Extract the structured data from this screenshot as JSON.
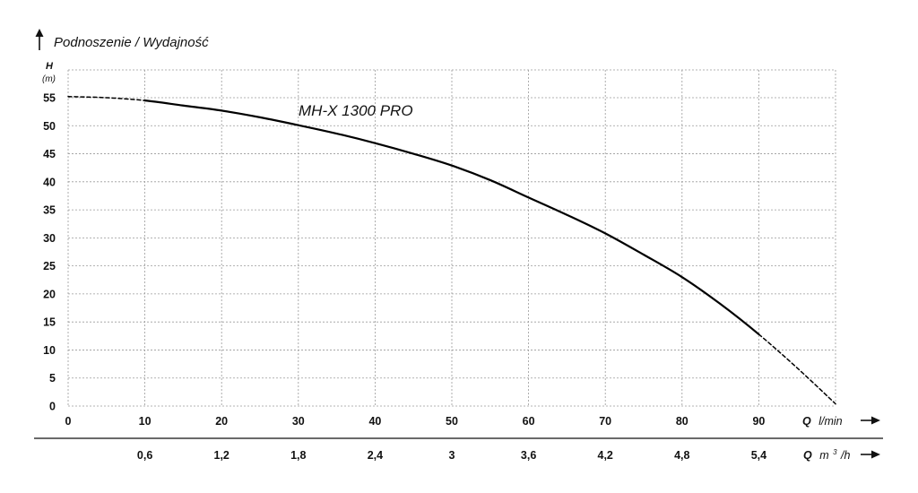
{
  "chart_data": {
    "type": "line",
    "title": "Podnoszenie / Wydajność",
    "y_axis": {
      "symbol": "H",
      "unit": "(m)",
      "ylim": [
        0,
        55
      ],
      "ticks": [
        "0",
        "5",
        "10",
        "15",
        "20",
        "25",
        "30",
        "35",
        "40",
        "45",
        "50",
        "55"
      ],
      "tick_values": [
        0,
        5,
        10,
        15,
        20,
        25,
        30,
        35,
        40,
        45,
        50,
        55
      ]
    },
    "x_axis": {
      "symbol": "Q",
      "unit": "l/min",
      "xlim": [
        0,
        100
      ],
      "ticks": [
        "0",
        "10",
        "20",
        "30",
        "40",
        "50",
        "60",
        "70",
        "80",
        "90"
      ],
      "tick_values": [
        0,
        10,
        20,
        30,
        40,
        50,
        60,
        70,
        80,
        90
      ]
    },
    "x_axis_secondary": {
      "symbol": "Q",
      "unit_base": "m",
      "unit_sup": "3",
      "unit_tail": "/h",
      "ticks": [
        "0,6",
        "1,2",
        "1,8",
        "2,4",
        "3",
        "3,6",
        "4,2",
        "4,8",
        "5,4"
      ],
      "tick_values": [
        10,
        20,
        30,
        40,
        50,
        60,
        70,
        80,
        90
      ]
    },
    "grid": true,
    "series": [
      {
        "name": "MH-X 1300 PRO",
        "color": "#000000",
        "dashed_ranges": [
          [
            0,
            10
          ],
          [
            90,
            100
          ]
        ],
        "x": [
          0,
          5,
          10,
          15,
          20,
          25,
          30,
          35,
          40,
          45,
          50,
          55,
          60,
          65,
          70,
          75,
          80,
          85,
          90,
          95,
          100
        ],
        "y": [
          55.2,
          55.0,
          54.5,
          53.6,
          52.7,
          51.5,
          50.1,
          48.6,
          46.9,
          45.0,
          42.9,
          40.3,
          37.2,
          34.1,
          30.8,
          27.0,
          23.0,
          18.2,
          12.8,
          6.8,
          0.4
        ]
      }
    ]
  }
}
